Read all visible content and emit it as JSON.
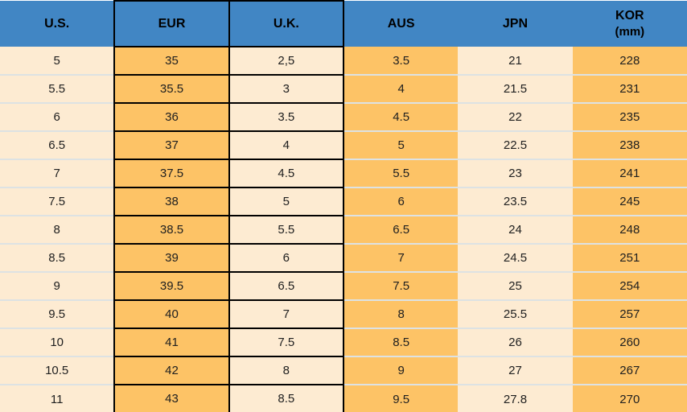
{
  "table": {
    "headers": [
      {
        "label": "U.S."
      },
      {
        "label": "EUR"
      },
      {
        "label": "U.K."
      },
      {
        "label": "AUS"
      },
      {
        "label": "JPN"
      },
      {
        "label": "KOR",
        "sublabel": "(mm)"
      }
    ],
    "rows": [
      [
        "5",
        "35",
        "2,5",
        "3.5",
        "21",
        "228"
      ],
      [
        "5.5",
        "35.5",
        "3",
        "4",
        "21.5",
        "231"
      ],
      [
        "6",
        "36",
        "3.5",
        "4.5",
        "22",
        "235"
      ],
      [
        "6.5",
        "37",
        "4",
        "5",
        "22.5",
        "238"
      ],
      [
        "7",
        "37.5",
        "4.5",
        "5.5",
        "23",
        "241"
      ],
      [
        "7.5",
        "38",
        "5",
        "6",
        "23.5",
        "245"
      ],
      [
        "8",
        "38.5",
        "5.5",
        "6.5",
        "24",
        "248"
      ],
      [
        "8.5",
        "39",
        "6",
        "7",
        "24.5",
        "251"
      ],
      [
        "9",
        "39.5",
        "6.5",
        "7.5",
        "25",
        "254"
      ],
      [
        "9.5",
        "40",
        "7",
        "8",
        "25.5",
        "257"
      ],
      [
        "10",
        "41",
        "7.5",
        "8.5",
        "26",
        "260"
      ],
      [
        "10.5",
        "42",
        "8",
        "9",
        "27",
        "267"
      ],
      [
        "11",
        "43",
        "8.5",
        "9.5",
        "27.8",
        "270"
      ]
    ]
  },
  "chart_data": {
    "type": "table",
    "title": "Shoe size conversion table",
    "columns": [
      "U.S.",
      "EUR",
      "U.K.",
      "AUS",
      "JPN",
      "KOR (mm)"
    ],
    "rows": [
      [
        "5",
        "35",
        "2,5",
        "3.5",
        "21",
        "228"
      ],
      [
        "5.5",
        "35.5",
        "3",
        "4",
        "21.5",
        "231"
      ],
      [
        "6",
        "36",
        "3.5",
        "4.5",
        "22",
        "235"
      ],
      [
        "6.5",
        "37",
        "4",
        "5",
        "22.5",
        "238"
      ],
      [
        "7",
        "37.5",
        "4.5",
        "5.5",
        "23",
        "241"
      ],
      [
        "7.5",
        "38",
        "5",
        "6",
        "23.5",
        "245"
      ],
      [
        "8",
        "38.5",
        "5.5",
        "6.5",
        "24",
        "248"
      ],
      [
        "8.5",
        "39",
        "6",
        "7",
        "24.5",
        "251"
      ],
      [
        "9",
        "39.5",
        "6.5",
        "7.5",
        "25",
        "254"
      ],
      [
        "9.5",
        "40",
        "7",
        "8",
        "25.5",
        "257"
      ],
      [
        "10",
        "41",
        "7.5",
        "8.5",
        "26",
        "260"
      ],
      [
        "10.5",
        "42",
        "8",
        "9",
        "27",
        "267"
      ],
      [
        "11",
        "43",
        "8.5",
        "9.5",
        "27.8",
        "270"
      ]
    ],
    "layout_hints": {
      "header_background": "#4186c4",
      "column_fill_pattern": [
        "cream",
        "orange",
        "cream",
        "orange",
        "cream",
        "orange"
      ],
      "black_outlined_columns": [
        "EUR",
        "U.K."
      ]
    }
  },
  "colors": {
    "header_bg": "#4186c4",
    "header_text": "#000000",
    "cream": "#fdebd2",
    "orange": "#fdc366",
    "grid_black": "#000000",
    "separator": "#dde2e3",
    "cell_text": "#202020"
  }
}
